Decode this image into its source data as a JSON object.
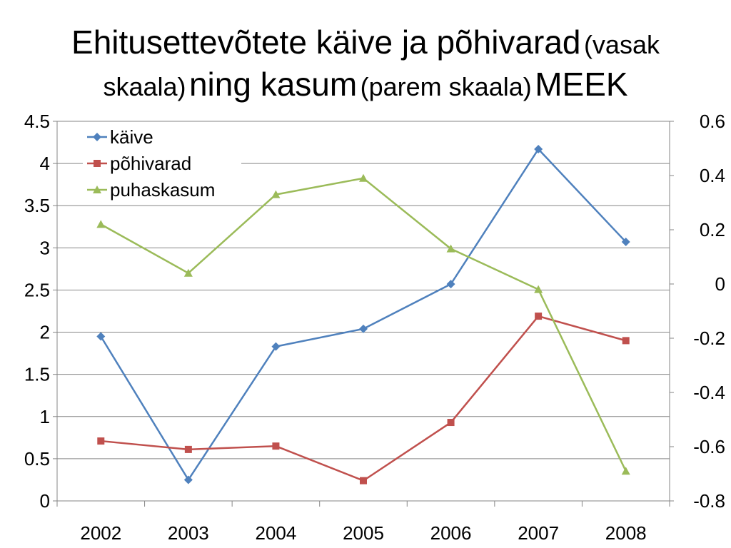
{
  "title": {
    "part1": "Ehitusettevõtete käive ja põhivarad",
    "part2": "(vasak",
    "part3": "skaala)",
    "part4": "ning kasum",
    "part5": "(parem skaala)",
    "part6": "MEEK"
  },
  "chart_data": {
    "type": "line",
    "categories": [
      "2002",
      "2003",
      "2004",
      "2005",
      "2006",
      "2007",
      "2008"
    ],
    "y_left": {
      "min": 0,
      "max": 4.5,
      "ticks": [
        "0",
        "0.5",
        "1",
        "1.5",
        "2",
        "2.5",
        "3",
        "3.5",
        "4",
        "4.5"
      ]
    },
    "y_right": {
      "min": -0.8,
      "max": 0.6,
      "ticks": [
        "-0.8",
        "-0.6",
        "-0.4",
        "-0.2",
        "0",
        "0.2",
        "0.4",
        "0.6"
      ]
    },
    "grid": true,
    "legend_position": "top-left",
    "series": [
      {
        "name": "käive",
        "axis": "left",
        "color": "#4F81BD",
        "marker": "diamond",
        "values": [
          1.95,
          0.25,
          1.83,
          2.04,
          2.57,
          4.17,
          3.07
        ]
      },
      {
        "name": "põhivarad",
        "axis": "left",
        "color": "#C0504D",
        "marker": "square",
        "values": [
          0.71,
          0.61,
          0.65,
          0.24,
          0.93,
          2.19,
          1.9
        ]
      },
      {
        "name": "puhaskasum",
        "axis": "right",
        "color": "#9BBB59",
        "marker": "triangle",
        "values": [
          0.22,
          0.04,
          0.33,
          0.39,
          0.13,
          -0.02,
          -0.69
        ]
      }
    ]
  }
}
